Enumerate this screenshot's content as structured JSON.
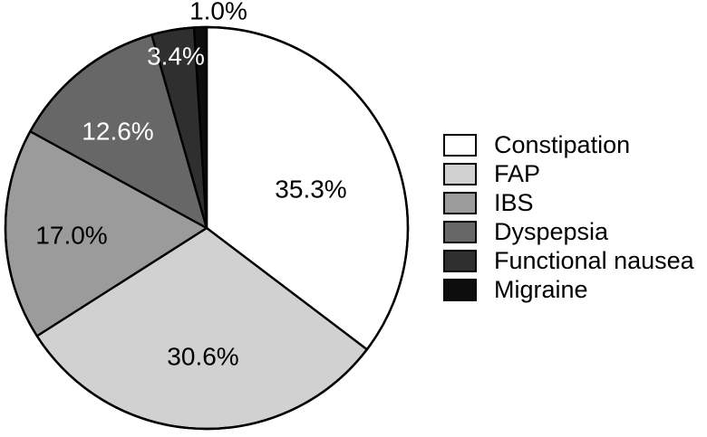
{
  "chart_data": {
    "type": "pie",
    "start_angle_deg": 0,
    "direction": "clockwise",
    "legend_position": "right",
    "background_color": "#ffffff",
    "outline_color": "#000000",
    "slices": [
      {
        "label": "Constipation",
        "value": 35.3,
        "display": "35.3%",
        "color": "#ffffff",
        "label_color": "#000000",
        "label_placement": "inside"
      },
      {
        "label": "FAP",
        "value": 30.6,
        "display": "30.6%",
        "color": "#d1d1d1",
        "label_color": "#000000",
        "label_placement": "inside"
      },
      {
        "label": "IBS",
        "value": 17.0,
        "display": "17.0%",
        "color": "#9b9b9b",
        "label_color": "#000000",
        "label_placement": "inside"
      },
      {
        "label": "Dyspepsia",
        "value": 12.6,
        "display": "12.6%",
        "color": "#676767",
        "label_color": "#ffffff",
        "label_placement": "inside"
      },
      {
        "label": "Functional nausea",
        "value": 3.4,
        "display": "3.4%",
        "color": "#2f2f2f",
        "label_color": "#ffffff",
        "label_placement": "inside"
      },
      {
        "label": "Migraine",
        "value": 1.0,
        "display": "1.0%",
        "color": "#0d0d0d",
        "label_color": "#000000",
        "label_placement": "outside"
      }
    ]
  }
}
